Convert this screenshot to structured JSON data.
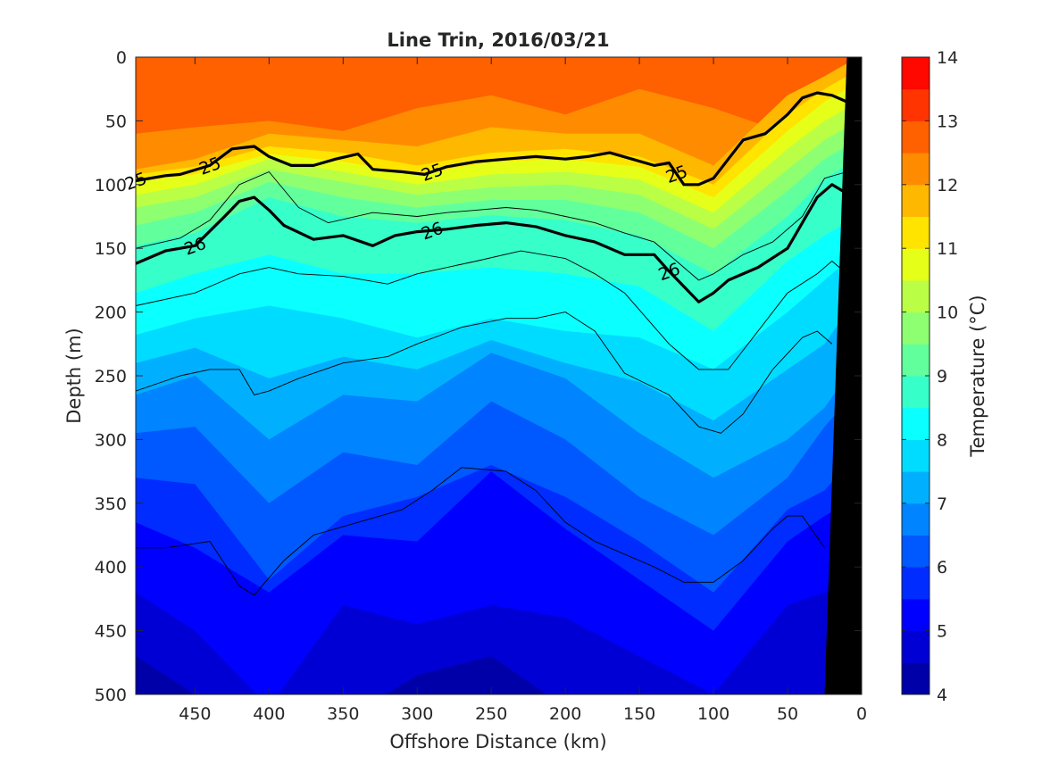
{
  "chart_data": {
    "type": "heatmap",
    "title": "Line Trin, 2016/03/21",
    "xlabel": "Offshore Distance (km)",
    "ylabel": "Depth (m)",
    "xlim": [
      490,
      0
    ],
    "ylim": [
      0,
      500
    ],
    "x_reversed": true,
    "y_reversed": true,
    "xticks": [
      450,
      400,
      350,
      300,
      250,
      200,
      150,
      100,
      50,
      0
    ],
    "yticks": [
      0,
      50,
      100,
      150,
      200,
      250,
      300,
      350,
      400,
      450,
      500
    ],
    "colorbar": {
      "label": "Temperature (°C)",
      "min": 4,
      "max": 14,
      "step": 0.5,
      "ticks": [
        4,
        5,
        6,
        7,
        8,
        9,
        10,
        11,
        12,
        13,
        14
      ],
      "colormap": [
        "#000080",
        "#0000a8",
        "#0000d4",
        "#0000ff",
        "#002cff",
        "#0058ff",
        "#0084ff",
        "#00b0ff",
        "#00dcff",
        "#0affff",
        "#36ffc9",
        "#62ff9d",
        "#8eff71",
        "#baff45",
        "#e6ff19",
        "#ffe400",
        "#ffb800",
        "#ff8c00",
        "#ff6000",
        "#ff3400",
        "#ff0800",
        "#d40000",
        "#a80000"
      ]
    },
    "isotherm_profiles": {
      "x_km": [
        490,
        450,
        400,
        350,
        300,
        250,
        200,
        150,
        100,
        50,
        25,
        10
      ],
      "depth_m": [
        {
          "temp": 12.5,
          "values": [
            60,
            55,
            50,
            58,
            40,
            30,
            45,
            25,
            40,
            60,
            45,
            30
          ]
        },
        {
          "temp": 12,
          "values": [
            88,
            80,
            60,
            65,
            70,
            55,
            60,
            60,
            85,
            30,
            15,
            5
          ]
        },
        {
          "temp": 11.5,
          "values": [
            92,
            86,
            70,
            75,
            85,
            75,
            72,
            78,
            100,
            45,
            25,
            15
          ]
        },
        {
          "temp": 11,
          "values": [
            98,
            92,
            76,
            82,
            92,
            82,
            80,
            86,
            110,
            58,
            35,
            25
          ]
        },
        {
          "temp": 10.5,
          "values": [
            108,
            100,
            80,
            90,
            100,
            92,
            90,
            96,
            122,
            72,
            50,
            40
          ]
        },
        {
          "temp": 10,
          "values": [
            118,
            110,
            88,
            98,
            108,
            102,
            100,
            108,
            135,
            88,
            65,
            55
          ]
        },
        {
          "temp": 9.5,
          "values": [
            132,
            122,
            98,
            110,
            118,
            112,
            112,
            122,
            150,
            105,
            80,
            70
          ]
        },
        {
          "temp": 9,
          "values": [
            148,
            138,
            110,
            125,
            130,
            124,
            128,
            140,
            170,
            125,
            95,
            85
          ]
        },
        {
          "temp": 8.5,
          "values": [
            185,
            170,
            155,
            170,
            170,
            165,
            170,
            180,
            215,
            160,
            140,
            130
          ]
        },
        {
          "temp": 8,
          "values": [
            218,
            205,
            195,
            205,
            220,
            205,
            215,
            220,
            245,
            200,
            175,
            160
          ]
        },
        {
          "temp": 7.5,
          "values": [
            240,
            228,
            252,
            235,
            245,
            222,
            240,
            255,
            285,
            245,
            225,
            200
          ]
        },
        {
          "temp": 7,
          "values": [
            265,
            250,
            300,
            265,
            270,
            232,
            252,
            295,
            330,
            300,
            275,
            250
          ]
        },
        {
          "temp": 6.5,
          "values": [
            295,
            290,
            350,
            310,
            320,
            270,
            300,
            345,
            375,
            330,
            290,
            270
          ]
        },
        {
          "temp": 6,
          "values": [
            330,
            335,
            410,
            360,
            345,
            320,
            345,
            380,
            420,
            355,
            340,
            320
          ]
        },
        {
          "temp": 5.5,
          "values": [
            365,
            385,
            420,
            375,
            380,
            325,
            370,
            410,
            450,
            380,
            360,
            350
          ]
        },
        {
          "temp": 5,
          "values": [
            420,
            450,
            510,
            430,
            445,
            430,
            440,
            470,
            500,
            430,
            420,
            410
          ]
        },
        {
          "temp": 4.5,
          "values": [
            470,
            500,
            520,
            520,
            485,
            470,
            510,
            520,
            520,
            510,
            510,
            510
          ]
        }
      ]
    },
    "density_contours": [
      {
        "label": "25",
        "bold": true,
        "x_km": [
          490,
          470,
          460,
          440,
          425,
          410,
          400,
          385,
          370,
          355,
          340,
          330,
          310,
          295,
          280,
          260,
          240,
          220,
          200,
          185,
          170,
          155,
          140,
          130,
          120,
          110,
          100,
          90,
          80,
          65,
          50,
          40,
          30,
          20,
          10
        ],
        "depth_m": [
          97,
          93,
          92,
          85,
          72,
          70,
          78,
          85,
          85,
          80,
          76,
          88,
          90,
          92,
          86,
          82,
          80,
          78,
          80,
          78,
          75,
          80,
          85,
          83,
          100,
          100,
          95,
          80,
          65,
          60,
          45,
          32,
          28,
          30,
          35
        ],
        "label_x_km": [
          490,
          440,
          290,
          125
        ]
      },
      {
        "label": "26",
        "bold": true,
        "x_km": [
          490,
          470,
          450,
          430,
          420,
          410,
          400,
          390,
          370,
          350,
          330,
          315,
          300,
          280,
          260,
          240,
          220,
          200,
          180,
          160,
          140,
          130,
          120,
          110,
          100,
          90,
          70,
          50,
          40,
          30,
          20,
          10
        ],
        "depth_m": [
          162,
          152,
          148,
          125,
          113,
          110,
          120,
          132,
          143,
          140,
          148,
          140,
          137,
          135,
          132,
          130,
          133,
          140,
          145,
          155,
          155,
          168,
          180,
          192,
          185,
          175,
          165,
          150,
          130,
          110,
          100,
          107
        ],
        "label_x_km": [
          450,
          290,
          130
        ]
      },
      {
        "label": "",
        "bold": false,
        "x_km": [
          490,
          460,
          440,
          420,
          400,
          380,
          360,
          330,
          300,
          280,
          260,
          240,
          220,
          200,
          180,
          160,
          140,
          120,
          110,
          100,
          80,
          60,
          40,
          25,
          10
        ],
        "depth_m": [
          150,
          142,
          128,
          100,
          90,
          118,
          130,
          122,
          125,
          122,
          120,
          118,
          120,
          125,
          130,
          138,
          145,
          165,
          175,
          170,
          155,
          145,
          125,
          95,
          90
        ]
      },
      {
        "label": "",
        "bold": false,
        "x_km": [
          490,
          450,
          420,
          400,
          380,
          350,
          320,
          300,
          260,
          230,
          200,
          180,
          160,
          130,
          110,
          90,
          70,
          50,
          30,
          20,
          15
        ],
        "depth_m": [
          195,
          185,
          170,
          165,
          170,
          172,
          178,
          170,
          160,
          152,
          158,
          170,
          185,
          225,
          245,
          245,
          215,
          185,
          170,
          160,
          165
        ]
      },
      {
        "label": "",
        "bold": false,
        "x_km": [
          490,
          460,
          440,
          420,
          410,
          400,
          380,
          350,
          320,
          300,
          270,
          240,
          220,
          200,
          180,
          160,
          130,
          110,
          95,
          80,
          60,
          40,
          30,
          20
        ],
        "depth_m": [
          262,
          250,
          245,
          245,
          265,
          262,
          252,
          240,
          235,
          225,
          212,
          205,
          205,
          200,
          215,
          248,
          265,
          290,
          295,
          280,
          245,
          220,
          215,
          225
        ]
      },
      {
        "label": "",
        "bold": false,
        "x_km": [
          490,
          470,
          440,
          420,
          410,
          390,
          370,
          340,
          310,
          290,
          270,
          240,
          220,
          200,
          180,
          160,
          140,
          120,
          100,
          80,
          60,
          50,
          40,
          25
        ],
        "depth_m": [
          385,
          385,
          380,
          415,
          422,
          395,
          375,
          365,
          355,
          340,
          322,
          325,
          340,
          365,
          380,
          390,
          400,
          412,
          412,
          395,
          370,
          360,
          360,
          385
        ]
      }
    ],
    "land_mask": {
      "x_km": [
        10,
        0,
        0,
        25
      ],
      "depth_m": [
        0,
        0,
        500,
        500
      ],
      "color": "#000000"
    }
  }
}
